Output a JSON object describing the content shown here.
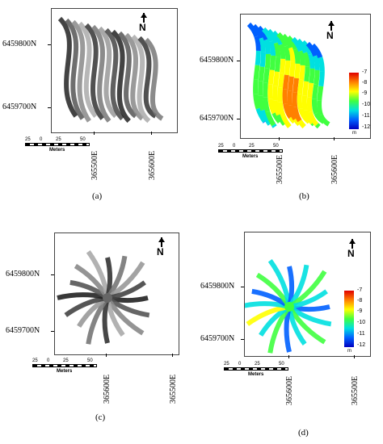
{
  "panels": [
    {
      "id": "a",
      "caption": "(a)",
      "y_labels": [
        "6459800N",
        "6459700N"
      ],
      "x_labels": [
        "365500E",
        "365600E"
      ],
      "north_label": "N",
      "scale": {
        "ticks": [
          "25",
          "0",
          "25",
          "50"
        ],
        "unit": "Meters"
      },
      "style": "grayscale",
      "pattern": "parallel"
    },
    {
      "id": "b",
      "caption": "(b)",
      "y_labels": [
        "6459800N",
        "6459700N"
      ],
      "x_labels": [
        "365500E",
        "365600E"
      ],
      "north_label": "N",
      "scale": {
        "ticks": [
          "25",
          "0",
          "25",
          "50"
        ],
        "unit": "Meters"
      },
      "style": "color",
      "pattern": "parallel",
      "legend": {
        "labels": [
          "-7",
          "-8",
          "-9",
          "-10",
          "-11",
          "-12"
        ],
        "unit": "m"
      }
    },
    {
      "id": "c",
      "caption": "(c)",
      "y_labels": [
        "6459800N",
        "6459700N"
      ],
      "x_labels": [
        "365600E",
        "365500E"
      ],
      "north_label": "N",
      "scale": {
        "ticks": [
          "25",
          "0",
          "25",
          "50"
        ],
        "unit": "Meters"
      },
      "style": "grayscale",
      "pattern": "radial"
    },
    {
      "id": "d",
      "caption": "(d)",
      "y_labels": [
        "6459800N",
        "6459700N"
      ],
      "x_labels": [
        "365600E",
        "365500E"
      ],
      "north_label": "N",
      "scale": {
        "ticks": [
          "25",
          "0",
          "25",
          "50"
        ],
        "unit": "Meters"
      },
      "style": "color",
      "pattern": "radial",
      "legend": {
        "labels": [
          "-7",
          "-8",
          "-9",
          "-10",
          "-11",
          "-12"
        ],
        "unit": "m"
      }
    }
  ]
}
